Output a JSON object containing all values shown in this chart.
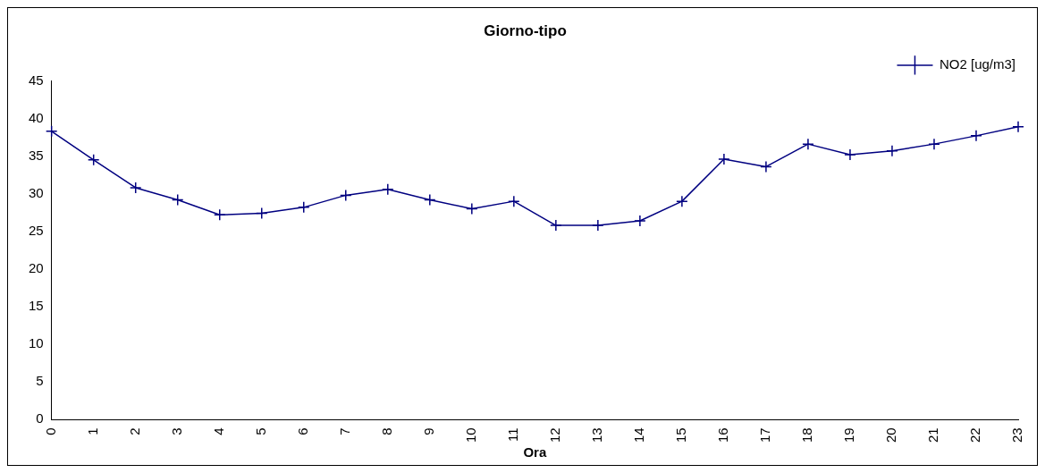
{
  "chart_data": {
    "type": "line",
    "title": "Giorno-tipo",
    "xlabel": "Ora",
    "categories": [
      "0",
      "1",
      "2",
      "3",
      "4",
      "5",
      "6",
      "7",
      "8",
      "9",
      "10",
      "11",
      "12",
      "13",
      "14",
      "15",
      "16",
      "17",
      "18",
      "19",
      "20",
      "21",
      "22",
      "23"
    ],
    "series": [
      {
        "name": "NO2 [ug/m3]",
        "color": "#000080",
        "values": [
          38.3,
          34.5,
          30.8,
          29.2,
          27.2,
          27.4,
          28.2,
          29.8,
          30.6,
          29.2,
          28.0,
          29.0,
          25.8,
          25.8,
          26.4,
          29.0,
          34.6,
          33.6,
          36.6,
          35.2,
          35.7,
          36.6,
          37.7,
          38.9
        ]
      }
    ],
    "ylim": [
      0,
      45
    ],
    "yticks": [
      0,
      5,
      10,
      15,
      20,
      25,
      30,
      35,
      40,
      45
    ],
    "grid": false,
    "legend": "top right",
    "marker": "cross",
    "line_style": "solid"
  }
}
